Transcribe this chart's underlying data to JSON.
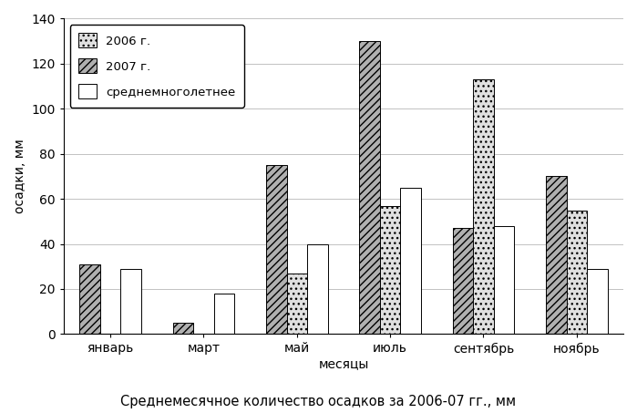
{
  "months": [
    "январь",
    "март",
    "май",
    "июль",
    "сентябрь",
    "ноябрь"
  ],
  "series_2007": [
    31,
    5,
    75,
    130,
    47,
    70
  ],
  "series_2006": [
    0,
    0,
    27,
    57,
    113,
    55
  ],
  "series_avg": [
    29,
    18,
    40,
    65,
    48,
    29
  ],
  "ylabel": "осадки, мм",
  "xlabel": "месяцы",
  "title": "Среднемесячное количество осадков за 2006-07 гг., мм",
  "legend_2006": "2006 г.",
  "legend_2007": "2007 г.",
  "legend_avg": "среднемноголетнее",
  "ylim": [
    0,
    140
  ],
  "yticks": [
    0,
    20,
    40,
    60,
    80,
    100,
    120,
    140
  ],
  "bar_width": 0.22,
  "color_2006": "#e0e0e0",
  "color_2007": "#b0b0b0",
  "color_avg": "#ffffff",
  "hatch_2006": "...",
  "hatch_2007": "////",
  "hatch_avg": ""
}
